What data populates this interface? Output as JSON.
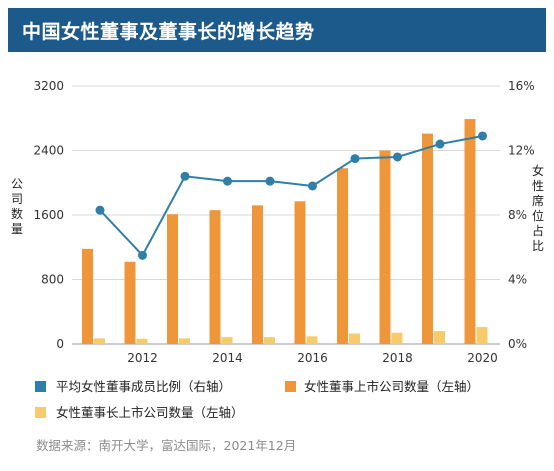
{
  "title": "中国女性董事及董事长的增长趋势",
  "source": "数据来源：南开大学，富达国际，2021年12月",
  "colors": {
    "title_bg": "#1c5a8c",
    "line": "#2f7fa8",
    "bar_directors": "#f0963a",
    "bar_chairs": "#f6cb6b"
  },
  "chart_data": {
    "type": "bar",
    "x": [
      2011,
      2012,
      2013,
      2014,
      2015,
      2016,
      2017,
      2018,
      2019,
      2020
    ],
    "x_tick_labels": [
      "2012",
      "2014",
      "2016",
      "2018",
      "2020"
    ],
    "x_tick_values": [
      2012,
      2014,
      2016,
      2018,
      2020
    ],
    "left_axis": {
      "label": "公司数量",
      "ylim": [
        0,
        3200
      ],
      "ticks": [
        "0",
        "800",
        "1600",
        "2400",
        "3200"
      ],
      "tick_values": [
        0,
        800,
        1600,
        2400,
        3200
      ]
    },
    "right_axis": {
      "label": "女性席位占比",
      "ylim": [
        0,
        16
      ],
      "ticks": [
        "0%",
        "4%",
        "8%",
        "12%",
        "16%"
      ],
      "tick_values": [
        0,
        4,
        8,
        12,
        16
      ]
    },
    "grid": "horizontal",
    "legend_position": "bottom",
    "series": [
      {
        "name": "女性董事上市公司数量（左轴）",
        "type": "bar",
        "axis": "left",
        "values": [
          1180,
          1020,
          1610,
          1660,
          1720,
          1770,
          2180,
          2400,
          2610,
          2790
        ]
      },
      {
        "name": "女性董事长上市公司数量（左轴）",
        "type": "bar",
        "axis": "left",
        "values": [
          70,
          65,
          70,
          85,
          85,
          95,
          130,
          140,
          160,
          210
        ]
      },
      {
        "name": "平均女性董事成员比例（右轴）",
        "type": "line",
        "axis": "right",
        "values": [
          8.3,
          5.5,
          10.4,
          10.1,
          10.1,
          9.8,
          11.5,
          11.6,
          12.4,
          12.9
        ]
      }
    ]
  }
}
